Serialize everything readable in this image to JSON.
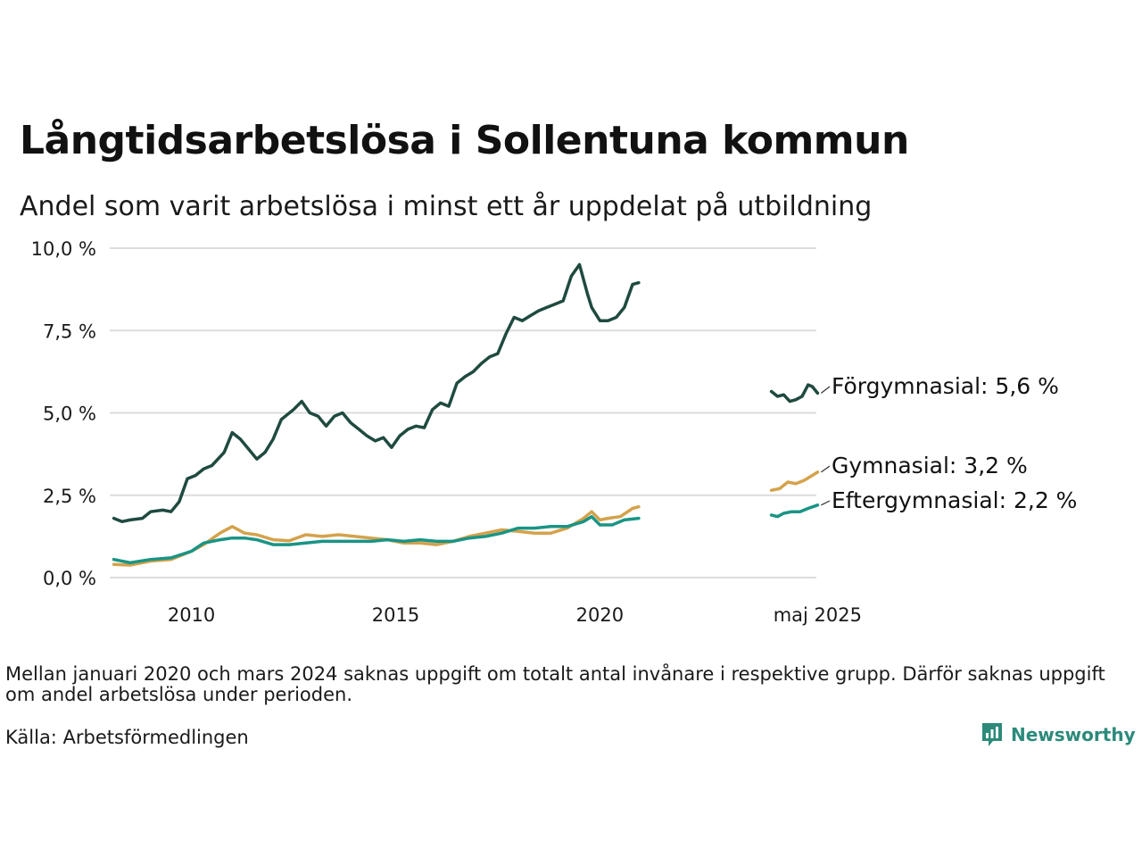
{
  "title": "Långtidsarbetslösa i Sollentuna kommun",
  "subtitle": "Andel som varit arbetslösa i minst ett år uppdelat på utbildning",
  "note": "Mellan januari 2020 och mars 2024 saknas uppgift om totalt antal invånare i respektive grupp. Därför saknas uppgift om andel arbetslösa under perioden.",
  "source": "Källa: Arbetsförmedlingen",
  "brand": "Newsworthy",
  "colors": {
    "forgymnasial": "#1f4a40",
    "gymnasial": "#d4a24c",
    "eftergymnasial": "#1a9485",
    "grid": "#dcdcdc"
  },
  "chart_data": {
    "type": "line",
    "title": "Långtidsarbetslösa i Sollentuna kommun",
    "subtitle": "Andel som varit arbetslösa i minst ett år uppdelat på utbildning",
    "xlabel": "",
    "ylabel": "",
    "ylim": [
      0,
      10
    ],
    "xlim": [
      2008.0,
      2025.3
    ],
    "x_ticks": [
      {
        "value": 2010,
        "label": "2010"
      },
      {
        "value": 2015,
        "label": "2015"
      },
      {
        "value": 2020,
        "label": "2020"
      },
      {
        "value": 2025.33,
        "label": "maj 2025"
      }
    ],
    "y_ticks": [
      {
        "value": 0,
        "label": "0,0 %"
      },
      {
        "value": 2.5,
        "label": "2,5 %"
      },
      {
        "value": 5,
        "label": "5,0 %"
      },
      {
        "value": 7.5,
        "label": "7,5 %"
      },
      {
        "value": 10,
        "label": "10,0 %"
      }
    ],
    "grid": true,
    "legend": "direct labels at right",
    "series": [
      {
        "name": "Förgymnasial",
        "end_label": "Förgymnasial: 5,6 %",
        "color": "#1f4a40",
        "segments": [
          {
            "x": [
              2008.1,
              2008.3,
              2008.5,
              2008.8,
              2009.0,
              2009.3,
              2009.5,
              2009.7,
              2009.9,
              2010.1,
              2010.3,
              2010.5,
              2010.8,
              2011.0,
              2011.2,
              2011.4,
              2011.6,
              2011.8,
              2012.0,
              2012.2,
              2012.5,
              2012.7,
              2012.9,
              2013.1,
              2013.3,
              2013.5,
              2013.7,
              2013.9,
              2014.1,
              2014.3,
              2014.5,
              2014.7,
              2014.9,
              2015.1,
              2015.3,
              2015.5,
              2015.7,
              2015.9,
              2016.1,
              2016.3,
              2016.5,
              2016.7,
              2016.9,
              2017.1,
              2017.3,
              2017.5,
              2017.7,
              2017.9,
              2018.1,
              2018.3,
              2018.5,
              2018.7,
              2018.9,
              2019.1,
              2019.3,
              2019.5,
              2019.7,
              2019.8,
              2020.0,
              2020.2,
              2020.4,
              2020.6,
              2020.8,
              2020.95
            ],
            "y": [
              1.8,
              1.7,
              1.75,
              1.8,
              2.0,
              2.05,
              2.0,
              2.3,
              3.0,
              3.1,
              3.3,
              3.4,
              3.8,
              4.4,
              4.2,
              3.9,
              3.6,
              3.8,
              4.2,
              4.8,
              5.1,
              5.35,
              5.0,
              4.9,
              4.6,
              4.9,
              5.0,
              4.7,
              4.5,
              4.3,
              4.15,
              4.25,
              3.95,
              4.3,
              4.5,
              4.6,
              4.55,
              5.1,
              5.3,
              5.2,
              5.9,
              6.1,
              6.25,
              6.5,
              6.7,
              6.8,
              7.4,
              7.9,
              7.8,
              7.95,
              8.1,
              8.2,
              8.3,
              8.4,
              9.15,
              9.5,
              8.6,
              8.2,
              7.8,
              7.8,
              7.9,
              8.2,
              8.9,
              8.95
            ]
          },
          {
            "x": [
              2024.2,
              2024.35,
              2024.5,
              2024.65,
              2024.8,
              2024.95,
              2025.1,
              2025.2,
              2025.33
            ],
            "y": [
              5.65,
              5.5,
              5.55,
              5.35,
              5.4,
              5.5,
              5.85,
              5.8,
              5.6
            ]
          }
        ]
      },
      {
        "name": "Gymnasial",
        "end_label": "Gymnasial: 3,2 %",
        "color": "#d4a24c",
        "segments": [
          {
            "x": [
              2008.1,
              2008.5,
              2009.0,
              2009.5,
              2010.0,
              2010.3,
              2010.7,
              2011.0,
              2011.3,
              2011.6,
              2012.0,
              2012.4,
              2012.8,
              2013.2,
              2013.6,
              2014.0,
              2014.4,
              2014.8,
              2015.2,
              2015.6,
              2016.0,
              2016.4,
              2016.8,
              2017.2,
              2017.6,
              2018.0,
              2018.4,
              2018.8,
              2019.2,
              2019.6,
              2019.8,
              2020.0,
              2020.2,
              2020.5,
              2020.8,
              2020.95
            ],
            "y": [
              0.4,
              0.38,
              0.5,
              0.55,
              0.8,
              1.0,
              1.35,
              1.55,
              1.35,
              1.3,
              1.15,
              1.12,
              1.3,
              1.25,
              1.3,
              1.25,
              1.2,
              1.15,
              1.05,
              1.05,
              1.0,
              1.1,
              1.25,
              1.35,
              1.45,
              1.4,
              1.35,
              1.35,
              1.5,
              1.8,
              2.0,
              1.75,
              1.8,
              1.85,
              2.1,
              2.15
            ]
          },
          {
            "x": [
              2024.2,
              2024.4,
              2024.6,
              2024.8,
              2025.0,
              2025.2,
              2025.33
            ],
            "y": [
              2.65,
              2.7,
              2.9,
              2.85,
              2.95,
              3.1,
              3.2
            ]
          }
        ]
      },
      {
        "name": "Eftergymnasial",
        "end_label": "Eftergymnasial: 2,2 %",
        "color": "#1a9485",
        "segments": [
          {
            "x": [
              2008.1,
              2008.5,
              2009.0,
              2009.5,
              2010.0,
              2010.3,
              2010.7,
              2011.0,
              2011.3,
              2011.6,
              2012.0,
              2012.4,
              2012.8,
              2013.2,
              2013.6,
              2014.0,
              2014.4,
              2014.8,
              2015.2,
              2015.6,
              2016.0,
              2016.4,
              2016.8,
              2017.2,
              2017.6,
              2018.0,
              2018.4,
              2018.8,
              2019.2,
              2019.6,
              2019.8,
              2020.0,
              2020.3,
              2020.6,
              2020.95
            ],
            "y": [
              0.55,
              0.45,
              0.55,
              0.6,
              0.8,
              1.05,
              1.15,
              1.2,
              1.2,
              1.15,
              1.0,
              1.0,
              1.05,
              1.1,
              1.1,
              1.1,
              1.1,
              1.15,
              1.1,
              1.15,
              1.1,
              1.1,
              1.2,
              1.25,
              1.35,
              1.5,
              1.5,
              1.55,
              1.55,
              1.7,
              1.85,
              1.6,
              1.6,
              1.75,
              1.8
            ]
          },
          {
            "x": [
              2024.2,
              2024.35,
              2024.5,
              2024.7,
              2024.9,
              2025.1,
              2025.33
            ],
            "y": [
              1.9,
              1.85,
              1.95,
              2.0,
              2.0,
              2.1,
              2.2
            ]
          }
        ]
      }
    ]
  }
}
